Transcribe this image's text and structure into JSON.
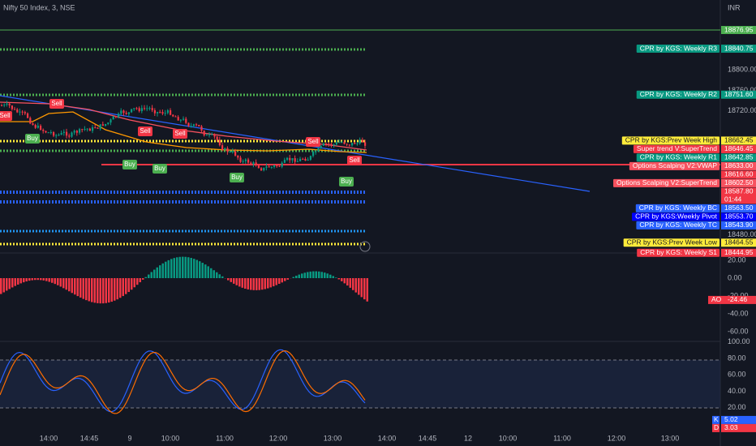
{
  "header": {
    "symbol": "Nifty 50 Index, 3, NSE",
    "currency": "INR"
  },
  "price_scale": {
    "ticks": [
      "18800.00",
      "18760.00",
      "18720.00",
      "18480.00"
    ],
    "labels": [
      {
        "price": "18876.95",
        "color": "#4caf50"
      },
      {
        "price": "18840.75",
        "name": "CPR by KGS: Weekly R3",
        "color": "#089981"
      },
      {
        "price": "18751.60",
        "name": "CPR by KGS: Weekly R2",
        "color": "#089981"
      },
      {
        "price": "18662.45",
        "name": "CPR by KGS:Prev Week High",
        "color": "#ffeb3b"
      },
      {
        "price": "18646.45",
        "name": "Super trend V:SuperTrend",
        "color": "#f23645"
      },
      {
        "price": "18642.85",
        "name": "CPR by KGS: Weekly R1",
        "color": "#089981"
      },
      {
        "price": "18633.00",
        "name": "Options Scalping V2:VWAP",
        "color": "#f7525f"
      },
      {
        "price": "18616.60",
        "color": "#f23645"
      },
      {
        "price": "18602.50",
        "name": "Options Scalping V2:SuperTrend",
        "color": "#f7525f"
      },
      {
        "price": "18587.80",
        "countdown": "01:44",
        "color": "#f23645"
      },
      {
        "price": "18563.50",
        "name": "CPR by KGS: Weekly BC",
        "color": "#2962ff"
      },
      {
        "price": "18553.70",
        "name": "CPR by KGS:Weekly Pivot",
        "color": "#0000ff"
      },
      {
        "price": "18543.90",
        "name": "CPR by KGS: Weekly TC",
        "color": "#2962ff"
      },
      {
        "price": "18464.55",
        "name": "CPR by KGS:Prev Week Low",
        "color": "#ffeb3b"
      },
      {
        "price": "18444.95",
        "name": "CPR by KGS: Weekly S1",
        "color": "#f23645"
      }
    ]
  },
  "ao_scale": {
    "ticks": [
      "20.00",
      "0.00",
      "-20.00",
      "-40.00",
      "-60.00"
    ],
    "label": {
      "name": "AO",
      "value": "-24.46",
      "color": "#f23645"
    }
  },
  "stoch_scale": {
    "ticks": [
      "100.00",
      "80.00",
      "60.00",
      "40.00",
      "20.00"
    ],
    "labels": [
      {
        "name": "K",
        "value": "5.02",
        "color": "#2962ff"
      },
      {
        "name": "D",
        "value": "3.03",
        "color": "#f23645"
      }
    ]
  },
  "time_axis": [
    "14:00",
    "14:45",
    "9",
    "10:00",
    "11:00",
    "12:00",
    "13:00",
    "14:00",
    "14:45",
    "12",
    "10:00",
    "11:00",
    "12:00",
    "13:00"
  ],
  "markers": [
    "Sell",
    "Sell",
    "Sell",
    "Sell",
    "Sell",
    "Sell",
    "Buy",
    "Buy",
    "Buy",
    "Buy",
    "Buy"
  ]
}
